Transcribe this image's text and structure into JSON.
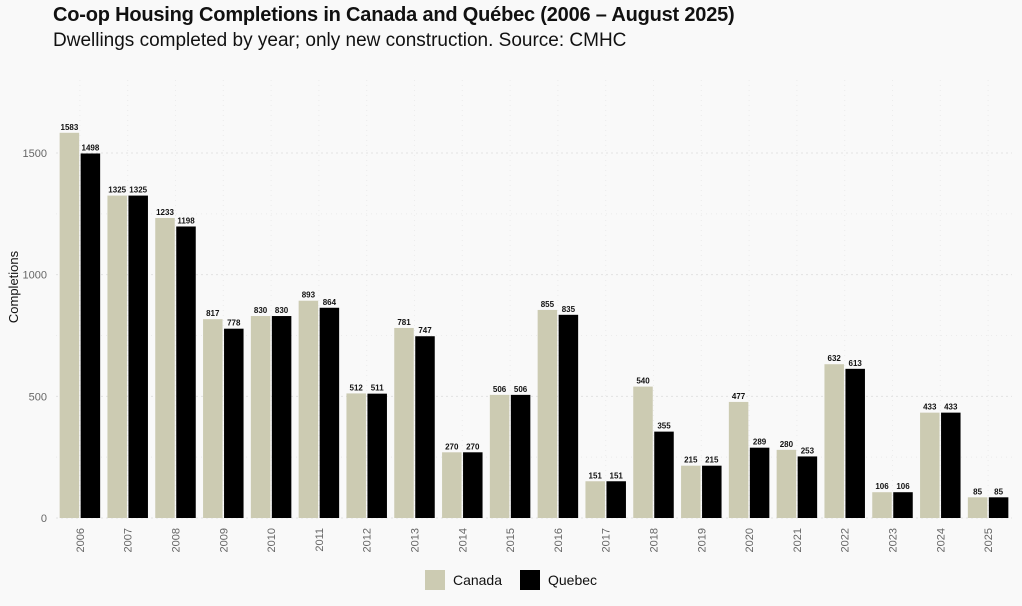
{
  "title": "Co-op Housing Completions in Canada and Québec (2006 – August 2025)",
  "subtitle": "Dwellings completed by year; only new construction. Source: CMHC",
  "chart_data": {
    "type": "bar",
    "title": "Co-op Housing Completions in Canada and Québec (2006 – August 2025)",
    "subtitle": "Dwellings completed by year; only new construction. Source: CMHC",
    "xlabel": "",
    "ylabel": "Completions",
    "ylim": [
      0,
      1600
    ],
    "yticks": [
      0,
      500,
      1000,
      1500
    ],
    "grid": true,
    "legend_position": "bottom",
    "categories": [
      "2006",
      "2007",
      "2008",
      "2009",
      "2010",
      "2011",
      "2012",
      "2013",
      "2014",
      "2015",
      "2016",
      "2017",
      "2018",
      "2019",
      "2020",
      "2021",
      "2022",
      "2023",
      "2024",
      "2025"
    ],
    "series": [
      {
        "name": "Canada",
        "color": "#cccbb2",
        "values": [
          1583,
          1325,
          1233,
          817,
          830,
          893,
          512,
          781,
          270,
          506,
          855,
          151,
          540,
          215,
          477,
          280,
          632,
          106,
          433,
          85
        ]
      },
      {
        "name": "Quebec",
        "color": "#000000",
        "values": [
          1498,
          1325,
          1198,
          778,
          830,
          864,
          511,
          747,
          270,
          506,
          835,
          151,
          355,
          215,
          289,
          253,
          613,
          106,
          433,
          85
        ]
      }
    ]
  }
}
